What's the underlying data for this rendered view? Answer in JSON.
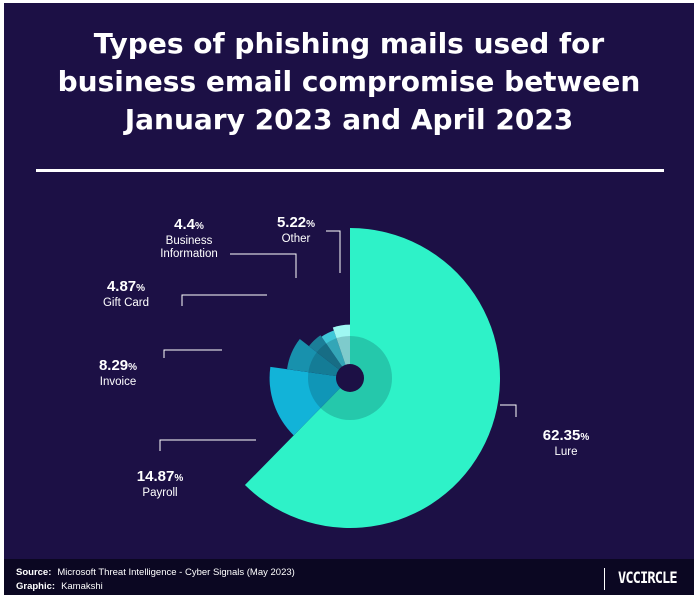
{
  "title_lines": [
    "Types of phishing mails used for",
    "business email compromise between",
    "January 2023 and April 2023"
  ],
  "chart_data": {
    "type": "pie",
    "variant": "radial-pie with radius scaled by value",
    "title": "Types of phishing mails used for business email compromise between January 2023 and April 2023",
    "unit": "%",
    "categories": [
      "Lure",
      "Payroll",
      "Invoice",
      "Gift Card",
      "Business Information",
      "Other"
    ],
    "values": [
      62.35,
      14.87,
      8.29,
      4.87,
      4.4,
      5.22
    ],
    "labels": [
      {
        "value": "62.35",
        "pct": "%",
        "name": [
          "Lure"
        ]
      },
      {
        "value": "14.87",
        "pct": "%",
        "name": [
          "Payroll"
        ]
      },
      {
        "value": "8.29",
        "pct": "%",
        "name": [
          "Invoice"
        ]
      },
      {
        "value": "4.87",
        "pct": "%",
        "name": [
          "Gift Card"
        ]
      },
      {
        "value": "4.4",
        "pct": "%",
        "name": [
          "Business",
          "Information"
        ]
      },
      {
        "value": "5.22",
        "pct": "%",
        "name": [
          "Other"
        ]
      }
    ],
    "colors": [
      "#2ef2c8",
      "#12b3d8",
      "#1891ad",
      "#1b7e98",
      "#3fc7d8",
      "#9ff7f2"
    ],
    "background": "#1c1045"
  },
  "footer": {
    "source_key": "Source:",
    "source_text": "Microsoft Threat Intelligence - Cyber Signals (May 2023)",
    "graphic_key": "Graphic:",
    "graphic_text": "Kamakshi",
    "brand": "VCCIRCLE"
  }
}
